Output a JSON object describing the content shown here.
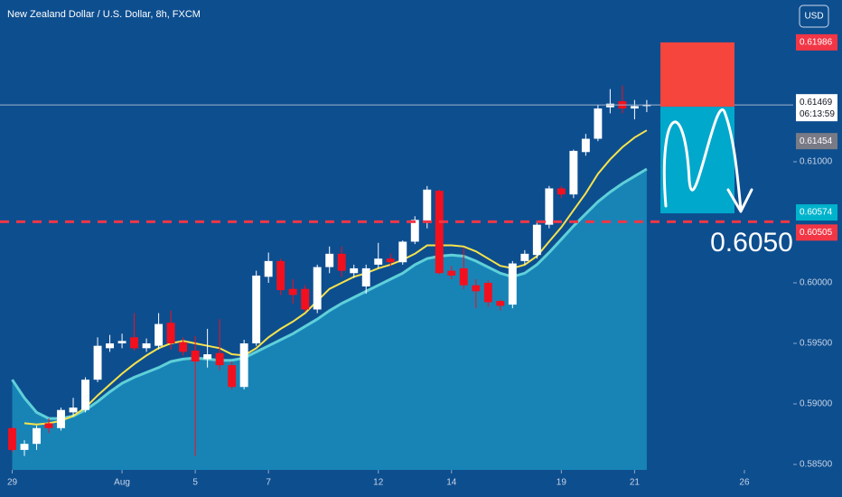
{
  "chart_data": {
    "type": "candlestick",
    "title": "New Zealand Dollar / U.S. Dollar, 8h, FXCM",
    "currency": "USD",
    "annotation": "0.6050",
    "countdown": "06:13:59",
    "up_color": "#ffffff",
    "down_color": "#f2101f",
    "background": "#0d4e8f",
    "xlim": [
      -1,
      64
    ],
    "xticks": [
      {
        "value": 0,
        "label": "29"
      },
      {
        "value": 9,
        "label": "Aug"
      },
      {
        "value": 15,
        "label": "5"
      },
      {
        "value": 21,
        "label": "7"
      },
      {
        "value": 30,
        "label": "12"
      },
      {
        "value": 36,
        "label": "14"
      },
      {
        "value": 45,
        "label": "19"
      },
      {
        "value": 51,
        "label": "21"
      },
      {
        "value": 60,
        "label": "26"
      }
    ],
    "ylim": [
      0.58455,
      0.62336
    ],
    "yticks": [
      {
        "value": 0.61,
        "label": "0.61000"
      },
      {
        "value": 0.6,
        "label": "0.60000"
      },
      {
        "value": 0.595,
        "label": "0.59500"
      },
      {
        "value": 0.59,
        "label": "0.59000"
      },
      {
        "value": 0.585,
        "label": "0.58500"
      }
    ],
    "open": [
      0.588,
      0.5862,
      0.5867,
      0.5884,
      0.588,
      0.5893,
      0.5895,
      0.592,
      0.5946,
      0.595,
      0.5955,
      0.5946,
      0.5948,
      0.5967,
      0.5951,
      0.5944,
      0.5937,
      0.5942,
      0.5932,
      0.5914,
      0.595,
      0.6005,
      0.6018,
      0.5995,
      0.5995,
      0.5978,
      0.6013,
      0.6024,
      0.6008,
      0.5997,
      0.6015,
      0.602,
      0.6017,
      0.6034,
      0.605,
      0.6076,
      0.601,
      0.6012,
      0.5998,
      0.6,
      0.5985,
      0.5982,
      0.6018,
      0.6023,
      0.6048,
      0.6078,
      0.6073,
      0.6108,
      0.6119,
      0.6145,
      0.615,
      0.6144,
      0.6146
    ],
    "high": [
      0.5881,
      0.587,
      0.5882,
      0.5888,
      0.5897,
      0.5905,
      0.5922,
      0.5955,
      0.5957,
      0.5958,
      0.5975,
      0.5954,
      0.5975,
      0.5977,
      0.5955,
      0.5956,
      0.5962,
      0.597,
      0.5935,
      0.5953,
      0.601,
      0.6025,
      0.602,
      0.6003,
      0.5998,
      0.6015,
      0.603,
      0.603,
      0.6015,
      0.6015,
      0.6033,
      0.6024,
      0.6035,
      0.6055,
      0.608,
      0.6077,
      0.6014,
      0.6029,
      0.6003,
      0.6002,
      0.5986,
      0.6018,
      0.6027,
      0.6051,
      0.608,
      0.608,
      0.611,
      0.6123,
      0.6147,
      0.616,
      0.6163,
      0.6151,
      0.6151
    ],
    "low": [
      0.586,
      0.5857,
      0.5862,
      0.5876,
      0.5878,
      0.589,
      0.5893,
      0.5918,
      0.5943,
      0.5946,
      0.5944,
      0.5943,
      0.5945,
      0.5945,
      0.594,
      0.5857,
      0.593,
      0.5928,
      0.5912,
      0.5912,
      0.5948,
      0.6,
      0.599,
      0.5983,
      0.5976,
      0.5975,
      0.6008,
      0.6005,
      0.6004,
      0.5991,
      0.6012,
      0.6014,
      0.6015,
      0.6032,
      0.6045,
      0.6007,
      0.6003,
      0.5995,
      0.5979,
      0.598,
      0.5977,
      0.5979,
      0.6015,
      0.602,
      0.6045,
      0.607,
      0.607,
      0.6105,
      0.6117,
      0.614,
      0.614,
      0.6135,
      0.6141
    ],
    "close": [
      0.5862,
      0.5867,
      0.588,
      0.588,
      0.5895,
      0.5897,
      0.592,
      0.5948,
      0.595,
      0.5952,
      0.5946,
      0.595,
      0.5966,
      0.595,
      0.5943,
      0.5935,
      0.5941,
      0.5932,
      0.5914,
      0.595,
      0.6006,
      0.6018,
      0.5994,
      0.599,
      0.5978,
      0.6013,
      0.6024,
      0.601,
      0.6012,
      0.6012,
      0.602,
      0.6017,
      0.6034,
      0.6052,
      0.6077,
      0.6008,
      0.6006,
      0.5998,
      0.5993,
      0.5984,
      0.5981,
      0.6016,
      0.6024,
      0.6048,
      0.6078,
      0.6073,
      0.6109,
      0.6119,
      0.6144,
      0.6148,
      0.6144,
      0.6146,
      0.6147
    ],
    "lines": [
      {
        "color": "#5fd0d8",
        "fill": "#1a8bba",
        "values": [
          0.592,
          0.5905,
          0.5893,
          0.5888,
          0.5888,
          0.589,
          0.5895,
          0.5902,
          0.591,
          0.5917,
          0.5922,
          0.5926,
          0.593,
          0.5935,
          0.5937,
          0.5938,
          0.5937,
          0.5936,
          0.5936,
          0.5938,
          0.5943,
          0.5948,
          0.5953,
          0.5958,
          0.5964,
          0.597,
          0.5977,
          0.5983,
          0.5988,
          0.5993,
          0.5998,
          0.6003,
          0.6008,
          0.6015,
          0.602,
          0.6022,
          0.6023,
          0.6022,
          0.6018,
          0.6013,
          0.6008,
          0.6005,
          0.6008,
          0.6015,
          0.6025,
          0.6036,
          0.6047,
          0.6057,
          0.6067,
          0.6075,
          0.6082,
          0.6088,
          0.6094
        ]
      },
      {
        "color": "#f7e34b",
        "values": [
          null,
          0.5884,
          0.5883,
          0.5884,
          0.5886,
          0.589,
          0.5897,
          0.5907,
          0.5916,
          0.5925,
          0.5933,
          0.594,
          0.5946,
          0.595,
          0.5952,
          0.595,
          0.5948,
          0.5946,
          0.5941,
          0.594,
          0.5946,
          0.5955,
          0.5962,
          0.5968,
          0.5975,
          0.5985,
          0.5995,
          0.6,
          0.6005,
          0.6008,
          0.6012,
          0.6015,
          0.6019,
          0.6024,
          0.6031,
          0.6031,
          0.6031,
          0.603,
          0.6026,
          0.602,
          0.6014,
          0.6012,
          0.6015,
          0.6022,
          0.6034,
          0.6046,
          0.606,
          0.6074,
          0.609,
          0.6102,
          0.6112,
          0.612,
          0.6126
        ]
      }
    ],
    "last_price": 0.61469,
    "level": 0.60505,
    "position_tool": {
      "stop": 0.61986,
      "entry": 0.61454,
      "target": 0.60574
    }
  }
}
